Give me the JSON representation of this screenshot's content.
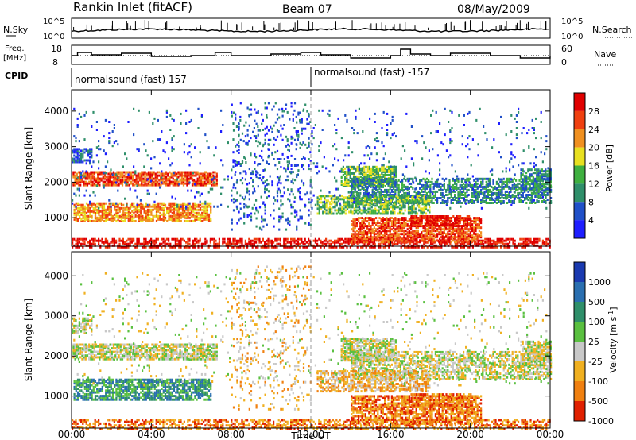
{
  "header": {
    "site": "Rankin Inlet (fitACF)",
    "beam": "Beam 07",
    "date": "08/May/2009"
  },
  "summary": {
    "nsky_label": "N.Sky",
    "nsky_ticks": [
      "10^5",
      "10^0"
    ],
    "nsearch_label": "N.Search",
    "nsearch_ticks": [
      "10^5",
      "10^0"
    ],
    "freq_label": "Freq.",
    "freq_unit": "[MHz]",
    "freq_ticks": [
      "18",
      "8"
    ],
    "nave_label": "Nave",
    "nave_ticks": [
      "60",
      "0"
    ],
    "cpid_label": "CPID",
    "cpid_segments": [
      {
        "start_hour": 0,
        "label": "normalsound (fast) 157"
      },
      {
        "start_hour": 12,
        "label": "normalsound (fast) -157"
      }
    ]
  },
  "chart_data": [
    {
      "type": "heatmap",
      "name": "power",
      "ylabel": "Slant Range [km]",
      "yticks": [
        "1000",
        "2000",
        "3000",
        "4000"
      ],
      "ylim": [
        200,
        4600
      ],
      "xlim": [
        0,
        24
      ],
      "colorbar_label": "Power [dB]",
      "colorbar_ticks": [
        "4",
        "8",
        "12",
        "16",
        "20",
        "24",
        "28"
      ],
      "colorbar_colors": [
        "#1e1eff",
        "#2050c8",
        "#2f8f6a",
        "#3fb040",
        "#e8e020",
        "#f09020",
        "#f04010",
        "#e00000"
      ]
    },
    {
      "type": "heatmap",
      "name": "velocity",
      "ylabel": "Slant Range [km]",
      "yticks": [
        "1000",
        "2000",
        "3000",
        "4000"
      ],
      "ylim": [
        200,
        4600
      ],
      "xlim": [
        0,
        24
      ],
      "colorbar_label": "Velocity [m s^-1]",
      "colorbar_ticks": [
        "1000",
        "500",
        "100",
        "25",
        "-25",
        "-100",
        "-500",
        "-1000"
      ],
      "colorbar_colors": [
        "#1a3ab0",
        "#2a6fb0",
        "#2f8f6a",
        "#5ac040",
        "#c8c8c8",
        "#f0b020",
        "#f08010",
        "#e02000"
      ]
    }
  ],
  "xaxis": {
    "ticks": [
      "00:00",
      "04:00",
      "08:00",
      "12:00",
      "16:00",
      "20:00",
      "00:00"
    ],
    "label": "Time UT"
  }
}
